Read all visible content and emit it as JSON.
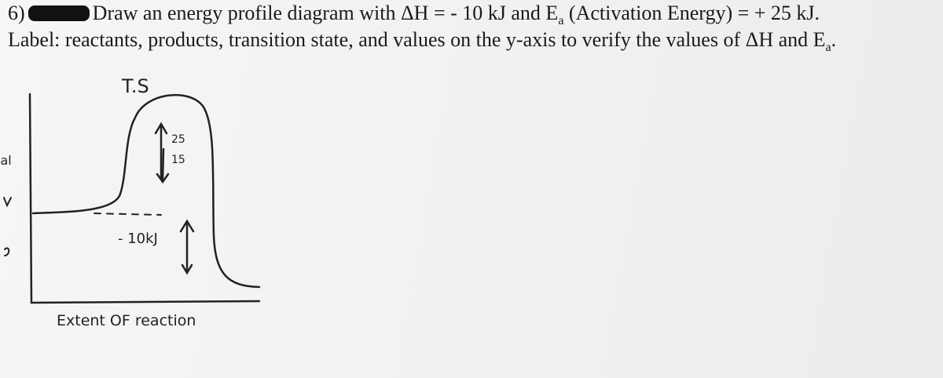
{
  "question": {
    "number": "6)",
    "line1": {
      "before": "Draw an energy profile diagram with ΔH = - 10 kJ and E",
      "sub": "a",
      "after": " (Activation Energy) = + 25 kJ."
    },
    "line2": {
      "before": "Label: reactants, products, transition state, and values on the y-axis to verify the values of ΔH and E",
      "sub": "a",
      "after": "."
    }
  },
  "sketch": {
    "transition_state": "T.S",
    "ea_top": "25",
    "ea_bottom": "15",
    "delta_h": "- 10kJ",
    "x_axis": "Extent OF reaction",
    "y_axis_fragment": "ial"
  }
}
